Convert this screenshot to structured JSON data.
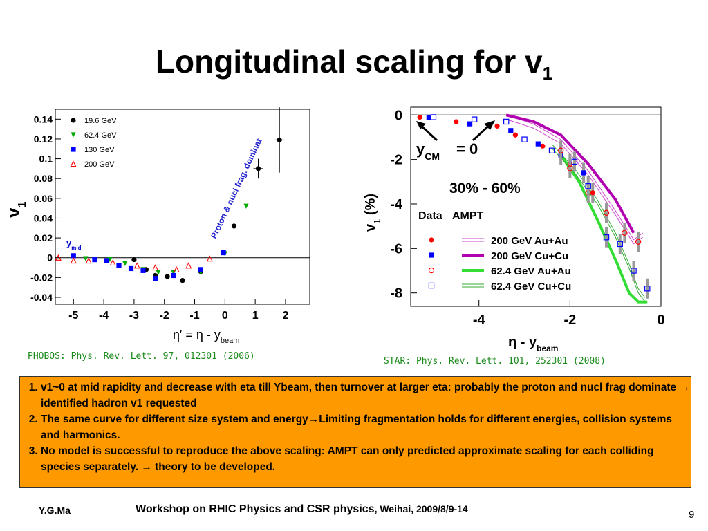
{
  "slide": {
    "title": "Longitudinal scaling for v",
    "title_sub": "1",
    "bullets": [
      "v1~0 at mid rapidity and decrease with eta till Ybeam, then turnover at larger eta: probably the proton and nucl frag dominate → identified hadron v1 requested",
      "The same curve for different size system and energy→Limiting fragmentation holds for different energies, collision systems and harmonics.",
      "No model is successful to reproduce the above scaling: AMPT can only predicted approximate scaling for each colliding species separately. → theory to be developed."
    ],
    "footer_left": "Y.G.Ma",
    "footer_center_main": "Workshop on RHIC Physics and CSR physics",
    "footer_center_small": ", Weihai, 2009/8/9-14",
    "page_number": "9",
    "left_citation": "PHOBOS: Phys. Rev. Lett. 97, 012301 (2006)",
    "right_citation": "STAR: Phys. Rev. Lett. 101, 252301 (2008)"
  },
  "colors": {
    "green_text": "#1a8a1a",
    "box": "#ff9900",
    "purple": "#b000b0",
    "green_line": "#33dd33"
  },
  "chart_data": [
    {
      "type": "scatter",
      "ylabel": "v1",
      "ylabel_sub": "1",
      "xlabel": "η′ = η - y",
      "xlabel_sub": "beam",
      "xlim": [
        -5.6,
        2.8
      ],
      "ylim": [
        -0.047,
        0.15
      ],
      "x_ticks": [
        "-5",
        "-4",
        "-3",
        "-2",
        "-1",
        "0",
        "1",
        "2"
      ],
      "x_tick_values": [
        -5,
        -4,
        -3,
        -2,
        -1,
        0,
        1,
        2
      ],
      "y_ticks": [
        "0.14",
        "0.12",
        "0.1",
        "0.08",
        "0.06",
        "0.04",
        "0.02",
        "0",
        "-0.02",
        "-0.04"
      ],
      "y_tick_values": [
        0.14,
        0.12,
        0.1,
        0.08,
        0.06,
        0.04,
        0.02,
        0,
        -0.02,
        -0.04
      ],
      "annotation_ymid": "y",
      "annotation_ymid_sub": "mid",
      "annotation_band": "Proton & nucl frag. dominat",
      "legend": [
        "19.6 GeV",
        "62.4 GeV",
        "130 GeV",
        "200 GeV"
      ],
      "series": [
        {
          "name": "19.6 GeV",
          "marker": "circle",
          "color": "#000000",
          "x": [
            -3.0,
            -2.6,
            -2.3,
            -1.9,
            -1.4,
            -0.8,
            0.3,
            1.1,
            1.8
          ],
          "y": [
            -0.002,
            -0.012,
            -0.018,
            -0.019,
            -0.023,
            -0.014,
            0.032,
            0.09,
            0.119
          ]
        },
        {
          "name": "62.4 GeV",
          "marker": "triangle-down",
          "color": "#00aa00",
          "x": [
            -4.6,
            -3.8,
            -3.3,
            -2.7,
            -2.2,
            -1.7,
            -0.8,
            0.0,
            0.7
          ],
          "y": [
            -0.001,
            -0.002,
            -0.006,
            -0.012,
            -0.015,
            -0.015,
            -0.015,
            0.004,
            0.052
          ]
        },
        {
          "name": "130 GeV",
          "marker": "square",
          "color": "#0000ff",
          "x": [
            -5.0,
            -4.3,
            -3.9,
            -3.5,
            -3.1,
            -2.7,
            -2.3,
            -1.7,
            -0.8,
            -0.05
          ],
          "y": [
            0.002,
            -0.002,
            -0.003,
            -0.008,
            -0.011,
            -0.013,
            -0.021,
            -0.018,
            -0.012,
            0.005
          ]
        },
        {
          "name": "200 GeV",
          "marker": "triangle-up-open",
          "color": "#ff0000",
          "x": [
            -5.5,
            -5.0,
            -4.5,
            -3.7,
            -2.9,
            -2.3,
            -1.6,
            -1.2,
            -0.5
          ],
          "y": [
            0.0,
            -0.003,
            -0.003,
            -0.005,
            -0.008,
            -0.01,
            -0.012,
            -0.008,
            -0.001
          ]
        }
      ]
    },
    {
      "type": "scatter",
      "ylabel": "v",
      "ylabel_sub": "1",
      "ylabel_unit": " (%)",
      "xlabel": "η - y",
      "xlabel_sub": "beam",
      "xlim": [
        -5.5,
        0.0
      ],
      "ylim": [
        -8.6,
        0.35
      ],
      "x_ticks": [
        "-4",
        "-2",
        "0"
      ],
      "x_tick_values": [
        -4,
        -2,
        0
      ],
      "y_ticks": [
        "0",
        "-2",
        "-4",
        "-6",
        "-8"
      ],
      "y_tick_values": [
        0,
        -2,
        -4,
        -6,
        -8
      ],
      "annotation_ycm": "y",
      "annotation_ycm_sub": "CM",
      "annotation_ycm_value": " = 0",
      "annotation_centrality": "30% - 60%",
      "legend_header_data": "Data",
      "legend_header_model": "AMPT",
      "legend": [
        "200 GeV Au+Au",
        "200 GeV Cu+Cu",
        "62.4 GeV Au+Au",
        "62.4 GeV Cu+Cu"
      ],
      "series": [
        {
          "name": "200 GeV Au+Au",
          "marker": "circle",
          "color": "#ff0000",
          "x": [
            -5.3,
            -4.5,
            -3.6,
            -3.2,
            -2.6,
            -2.0,
            -1.5
          ],
          "y": [
            -0.1,
            -0.3,
            -0.5,
            -0.9,
            -1.4,
            -2.2,
            -3.5
          ]
        },
        {
          "name": "200 GeV Cu+Cu",
          "marker": "square",
          "color": "#0000ff",
          "x": [
            -5.1,
            -4.2,
            -3.3,
            -2.7,
            -2.2,
            -1.7
          ],
          "y": [
            -0.1,
            -0.4,
            -0.7,
            -1.3,
            -1.8,
            -2.6
          ]
        },
        {
          "name": "62.4 GeV Au+Au",
          "marker": "circle-open",
          "color": "#ff0000",
          "x": [
            -2.2,
            -2.0,
            -1.6,
            -1.2,
            -0.8,
            -0.5
          ],
          "y": [
            -1.6,
            -2.4,
            -3.5,
            -4.4,
            -5.3,
            -5.7
          ]
        },
        {
          "name": "62.4 GeV Cu+Cu",
          "marker": "square-open",
          "color": "#0000ff",
          "x": [
            -5.0,
            -4.1,
            -3.4,
            -3.0,
            -2.4,
            -1.9,
            -1.6,
            -1.2,
            -0.9,
            -0.6,
            -0.3
          ],
          "y": [
            -0.1,
            -0.2,
            -0.3,
            -1.1,
            -1.6,
            -2.1,
            -3.2,
            -5.5,
            -5.8,
            -7.0,
            -7.8
          ]
        }
      ],
      "model_curves": [
        {
          "name": "200 GeV Au+Au",
          "style": "double-thin",
          "color": "#cc44cc",
          "x": [
            -3.4,
            -2.8,
            -2.2,
            -1.6,
            -1.0,
            -0.6,
            -0.4
          ],
          "y": [
            -0.1,
            -0.5,
            -1.2,
            -2.6,
            -4.4,
            -5.7,
            -5.4
          ]
        },
        {
          "name": "200 GeV Cu+Cu",
          "style": "thick",
          "color": "#b000b0",
          "x": [
            -3.4,
            -2.8,
            -2.2,
            -1.6,
            -1.0,
            -0.6
          ],
          "y": [
            0.0,
            -0.3,
            -0.9,
            -2.2,
            -3.8,
            -5.3
          ]
        },
        {
          "name": "62.4 GeV Au+Au",
          "style": "thick",
          "color": "#33dd33",
          "x": [
            -2.2,
            -1.8,
            -1.4,
            -1.0,
            -0.7,
            -0.5,
            -0.3
          ],
          "y": [
            -1.8,
            -3.0,
            -4.7,
            -6.5,
            -8.0,
            -8.4,
            -8.4
          ]
        },
        {
          "name": "62.4 GeV Cu+Cu",
          "style": "double-thin",
          "color": "#33aa33",
          "x": [
            -2.4,
            -1.9,
            -1.4,
            -1.0,
            -0.7,
            -0.5,
            -0.35
          ],
          "y": [
            -1.4,
            -2.5,
            -3.9,
            -5.4,
            -6.8,
            -7.9,
            -8.3
          ]
        }
      ]
    }
  ]
}
